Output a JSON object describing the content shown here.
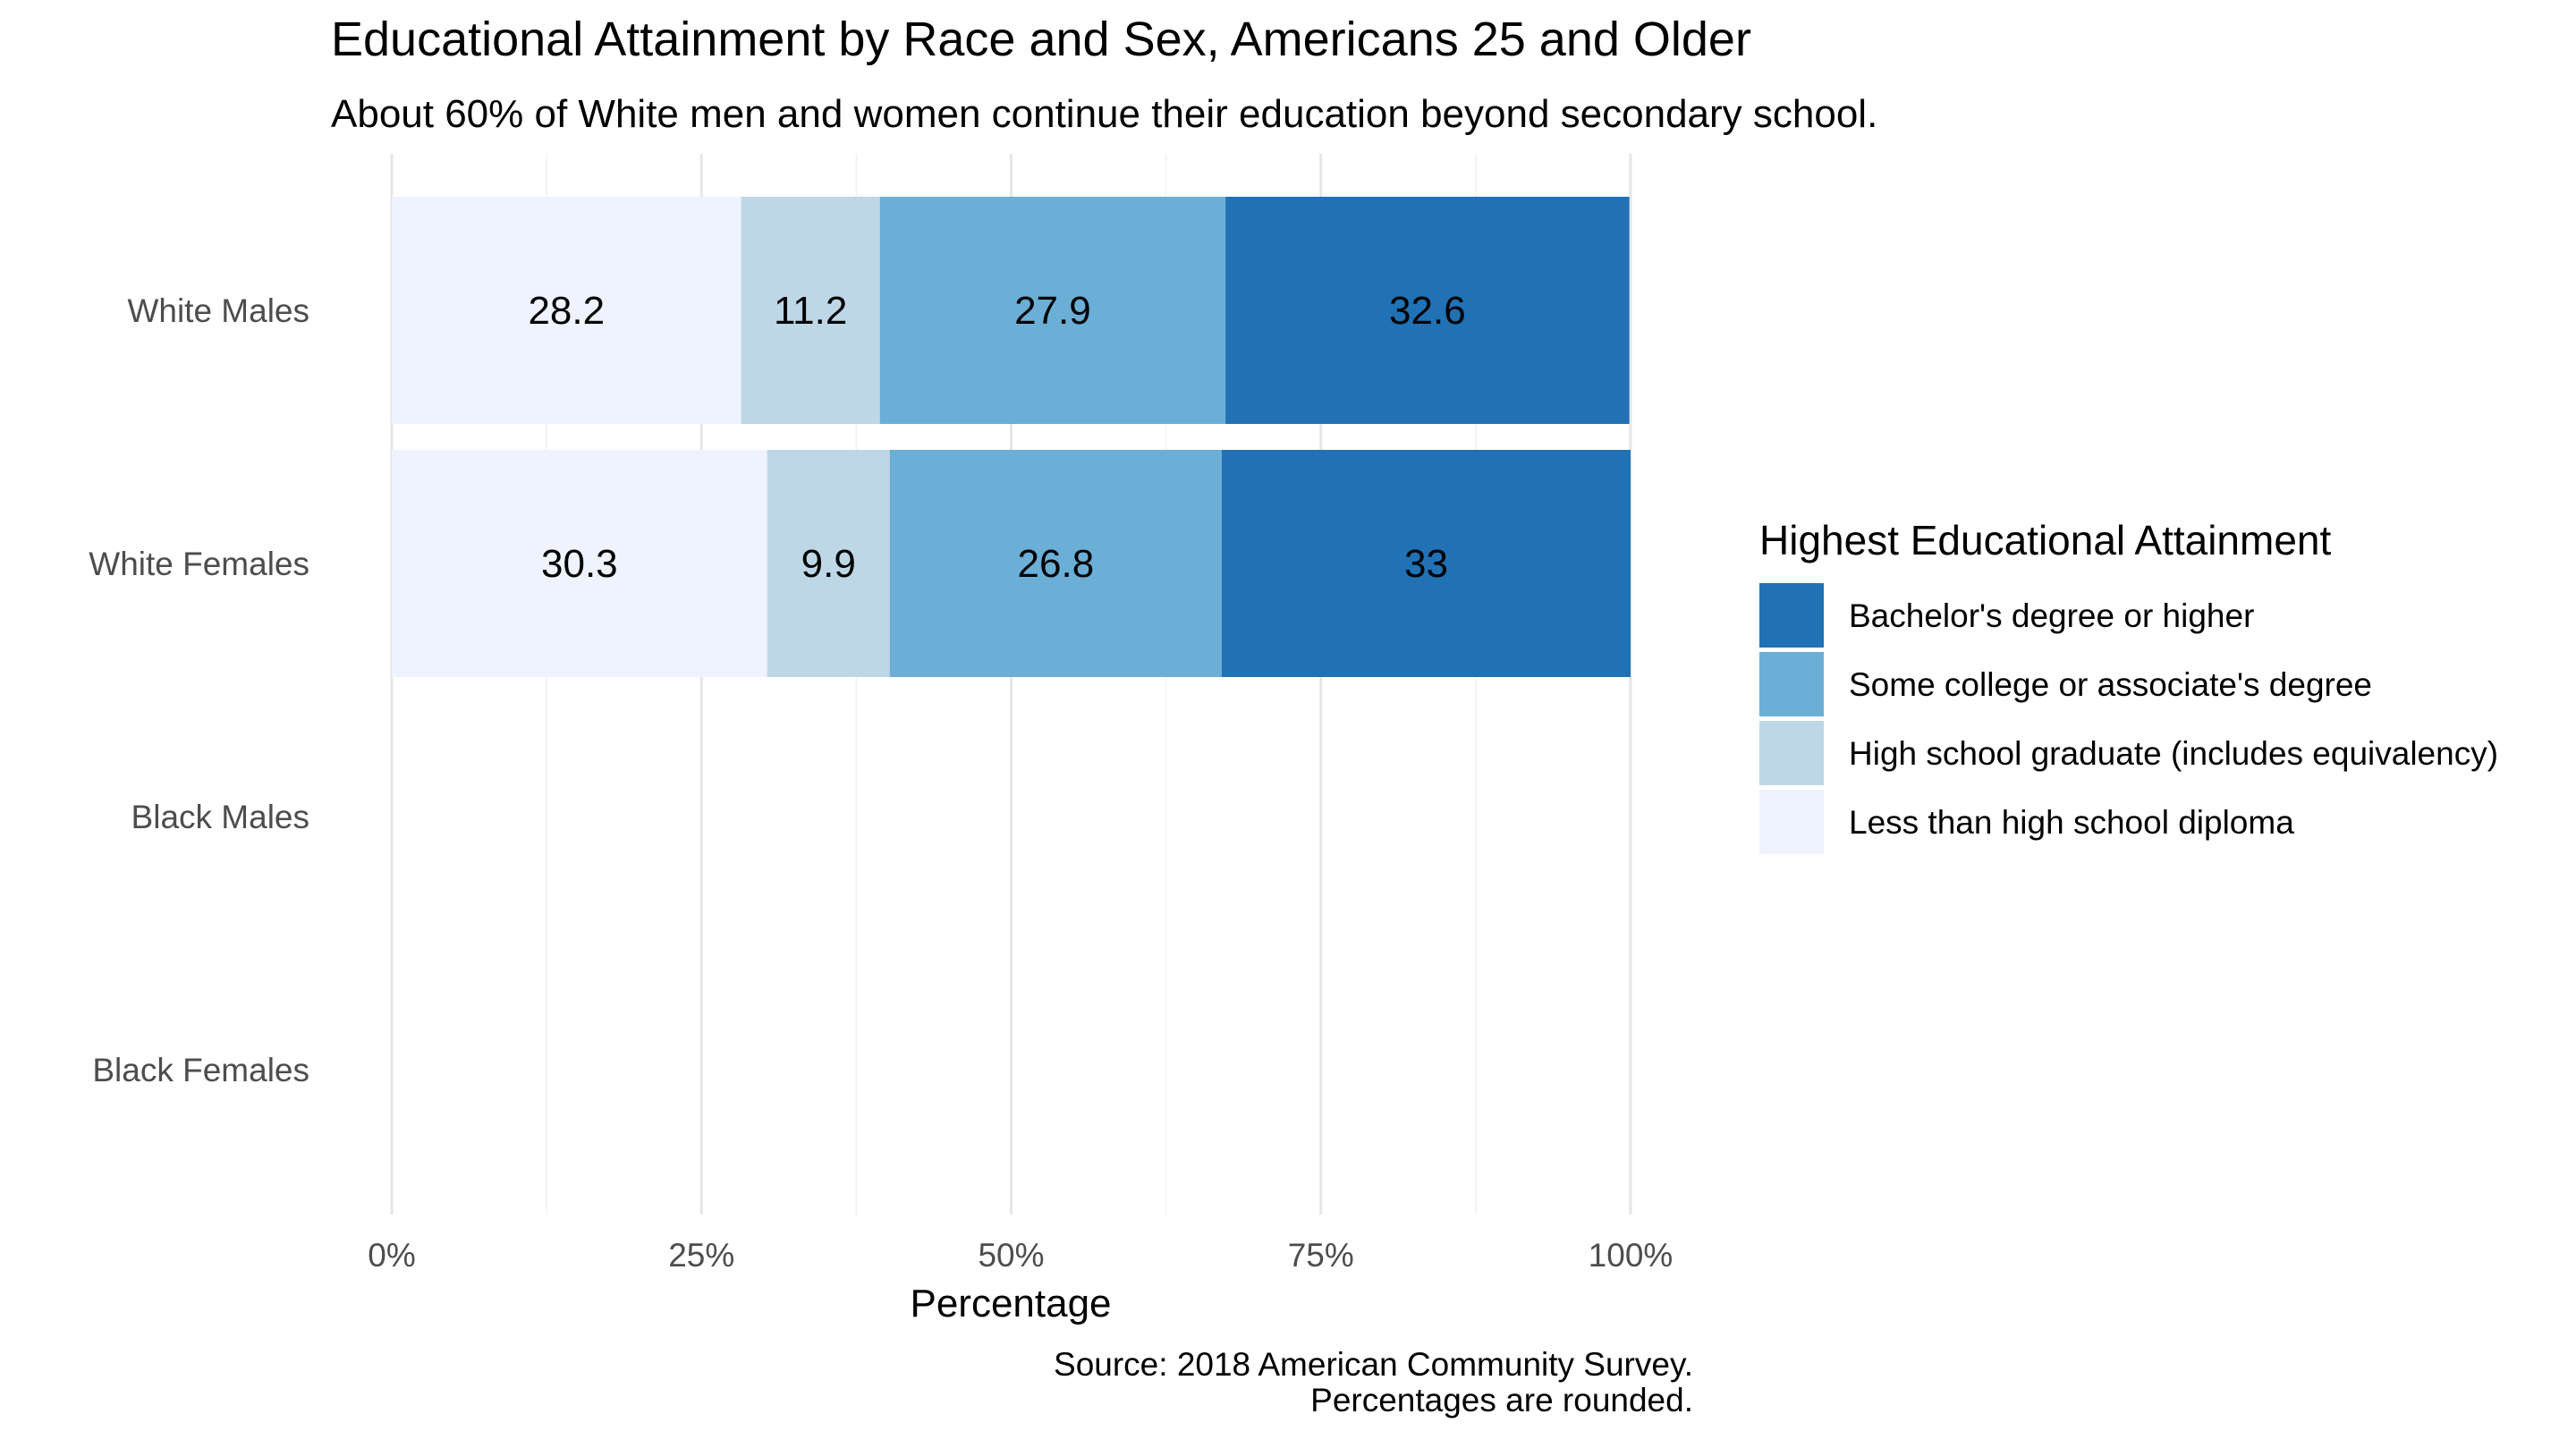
{
  "chart_data": {
    "type": "bar",
    "orientation": "horizontal",
    "stacked": true,
    "title": "Educational Attainment by Race and Sex, Americans 25 and Older",
    "subtitle": "About 60% of White men and women continue their education beyond secondary school.",
    "xlabel": "Percentage",
    "ylabel": "",
    "xlim": [
      0,
      100
    ],
    "x_ticks": [
      0,
      25,
      50,
      75,
      100
    ],
    "x_tick_labels": [
      "0%",
      "25%",
      "50%",
      "75%",
      "100%"
    ],
    "grid": "vertical",
    "categories": [
      "White Males",
      "White Females",
      "Black Males",
      "Black Females"
    ],
    "series": [
      {
        "name": "Less than high school diploma",
        "color": "#eff3ff",
        "values": [
          28.2,
          30.3,
          null,
          null
        ]
      },
      {
        "name": "High school graduate (includes equivalency)",
        "color": "#bdd7e7",
        "values": [
          11.2,
          9.9,
          null,
          null
        ]
      },
      {
        "name": "Some college or associate's degree",
        "color": "#6baed6",
        "values": [
          27.9,
          26.8,
          null,
          null
        ]
      },
      {
        "name": "Bachelor's degree or higher",
        "color": "#2171b5",
        "values": [
          32.6,
          33,
          null,
          null
        ]
      }
    ],
    "data_labels": [
      [
        "28.2",
        "11.2",
        "27.9",
        "32.6"
      ],
      [
        "30.3",
        "9.9",
        "26.8",
        "33"
      ],
      [],
      []
    ],
    "legend": {
      "title": "Highest Educational Attainment",
      "placement": "right",
      "order": [
        "Bachelor's degree or higher",
        "Some college or associate's degree",
        "High school graduate (includes equivalency)",
        "Less than high school diploma"
      ]
    },
    "caption": [
      "Source: 2018 American Community Survey.",
      "Percentages are rounded."
    ]
  }
}
